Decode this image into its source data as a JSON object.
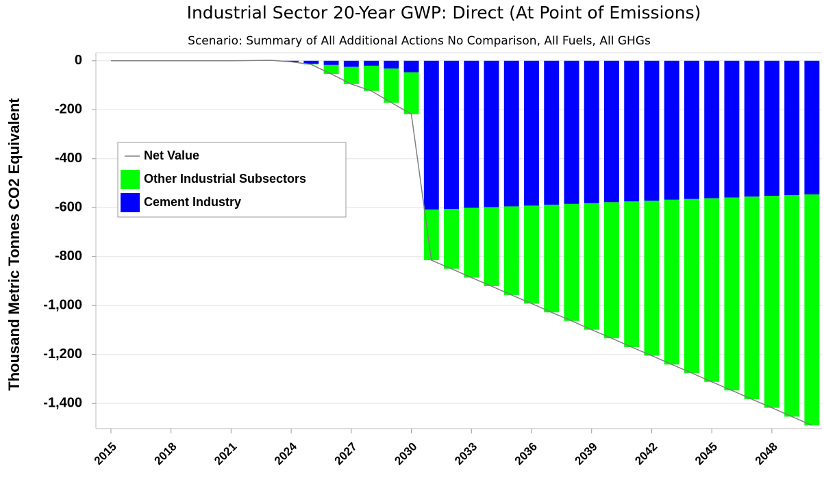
{
  "chart_data": {
    "type": "bar",
    "stacked": true,
    "title": "Industrial Sector 20-Year GWP: Direct (At Point of Emissions)",
    "subtitle": "Scenario: Summary of All Additional Actions No Comparison, All Fuels, All GHGs",
    "y_label": "Thousand Metric Tonnes CO2 Equivalent",
    "x": [
      2015,
      2016,
      2017,
      2018,
      2019,
      2020,
      2021,
      2022,
      2023,
      2024,
      2025,
      2026,
      2027,
      2028,
      2029,
      2030,
      2031,
      2032,
      2033,
      2034,
      2035,
      2036,
      2037,
      2038,
      2039,
      2040,
      2041,
      2042,
      2043,
      2044,
      2045,
      2046,
      2047,
      2048,
      2049,
      2050
    ],
    "xlim": [
      2014.25,
      2050.5
    ],
    "xticks": [
      2015,
      2018,
      2021,
      2024,
      2027,
      2030,
      2033,
      2036,
      2039,
      2042,
      2045,
      2048
    ],
    "ylim": [
      -1503,
      33
    ],
    "yticks": [
      0,
      -200,
      -400,
      -600,
      -800,
      {
        "value": -1000,
        "label": "-1,000"
      },
      {
        "value": -1200,
        "label": "-1,200"
      },
      {
        "value": -1400,
        "label": "-1,400"
      }
    ],
    "grid": true,
    "legend": "center left",
    "series": [
      {
        "name": "Net Value",
        "kind": "line",
        "color": "#808080",
        "values": [
          0,
          0,
          0,
          0,
          0,
          0,
          0,
          1,
          2,
          -4,
          -15,
          -54,
          -95,
          -123,
          -171,
          -218,
          -815,
          -850,
          -886,
          -921,
          -957,
          -992,
          -1028,
          -1063,
          -1099,
          -1134,
          -1170,
          -1205,
          -1241,
          -1276,
          -1312,
          -1347,
          -1383,
          -1418,
          -1454,
          -1490
        ]
      },
      {
        "name": "Other Industrial Subsectors",
        "kind": "bar",
        "color": "#00ff00",
        "values": [
          0,
          0,
          0,
          0,
          0,
          0,
          0,
          0,
          0,
          0,
          -3,
          -37,
          -70,
          -103,
          -139,
          -171,
          -207,
          -245,
          -285,
          -323,
          -362,
          -400,
          -440,
          -478,
          -517,
          -556,
          -595,
          -633,
          -673,
          -711,
          -750,
          -788,
          -828,
          -866,
          -905,
          -944
        ]
      },
      {
        "name": "Cement Industry",
        "kind": "bar",
        "color": "#0000ff",
        "values": [
          0,
          0,
          0,
          0,
          0,
          0,
          0,
          0,
          0,
          -4,
          -12,
          -17,
          -25,
          -20,
          -32,
          -47,
          -608,
          -605,
          -601,
          -598,
          -595,
          -592,
          -588,
          -585,
          -582,
          -578,
          -575,
          -572,
          -568,
          -565,
          -562,
          -559,
          -555,
          -552,
          -549,
          -546
        ]
      }
    ]
  }
}
